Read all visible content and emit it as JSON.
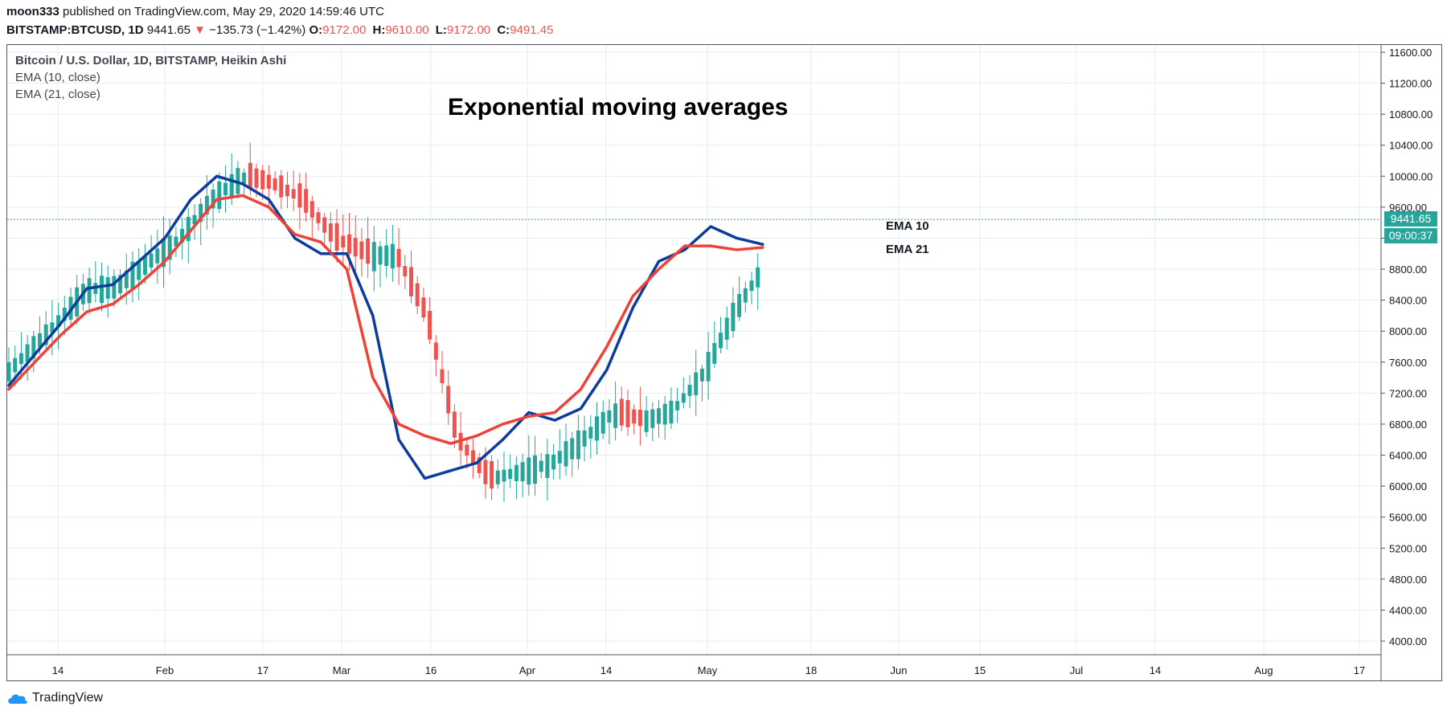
{
  "header": {
    "user": "moon333",
    "published": "published on TradingView.com, May 29, 2020 14:59:46 UTC",
    "symbol": "BITSTAMP:BTCUSD, 1D",
    "last": "9441.65",
    "change_arrow": "▼",
    "change": "−135.73 (−1.42%)",
    "o_label": "O:",
    "o_value": "9172.00",
    "h_label": "H:",
    "h_value": "9610.00",
    "l_label": "L:",
    "l_value": "9172.00",
    "c_label": "C:",
    "c_value": "9491.45"
  },
  "legend": {
    "main": "Bitcoin / U.S. Dollar, 1D, BITSTAMP, Heikin Ashi",
    "ema10": "EMA (10, close)",
    "ema21": "EMA (21, close)"
  },
  "price_tag": {
    "price": "9441.65",
    "countdown": "09:00:37"
  },
  "footer": {
    "brand": "TradingView"
  },
  "colors": {
    "up": "#26a69a",
    "down": "#ef5350",
    "ema10": "#0d3d9c",
    "ema21": "#ef4136",
    "grid": "#e6eef0"
  },
  "chart_data": {
    "type": "candlestick",
    "title": "Exponential moving averages",
    "ylim": [
      3900,
      11700
    ],
    "y_ticks": [
      "11600.00",
      "11200.00",
      "10800.00",
      "10400.00",
      "10000.00",
      "9600.00",
      "9200.00",
      "8800.00",
      "8400.00",
      "8000.00",
      "7600.00",
      "7200.00",
      "6800.00",
      "6400.00",
      "6000.00",
      "5600.00",
      "5200.00",
      "4800.00",
      "4400.00",
      "4000.00"
    ],
    "x_ticks": [
      "14",
      "Feb",
      "17",
      "Mar",
      "16",
      "Apr",
      "14",
      "May",
      "18",
      "Jun",
      "15",
      "Jul",
      "14",
      "Aug",
      "17"
    ],
    "current_price": 9441.65,
    "series": [
      {
        "name": "EMA 10",
        "color": "#0d3d9c",
        "values": [
          [
            0,
            7300
          ],
          [
            5,
            7700
          ],
          [
            10,
            8100
          ],
          [
            15,
            8550
          ],
          [
            20,
            8600
          ],
          [
            25,
            8900
          ],
          [
            30,
            9200
          ],
          [
            35,
            9700
          ],
          [
            40,
            10000
          ],
          [
            45,
            9900
          ],
          [
            50,
            9700
          ],
          [
            55,
            9200
          ],
          [
            60,
            9000
          ],
          [
            65,
            9000
          ],
          [
            70,
            8200
          ],
          [
            75,
            6600
          ],
          [
            80,
            6100
          ],
          [
            85,
            6200
          ],
          [
            90,
            6300
          ],
          [
            95,
            6600
          ],
          [
            100,
            6950
          ],
          [
            105,
            6850
          ],
          [
            110,
            7000
          ],
          [
            115,
            7500
          ],
          [
            120,
            8300
          ],
          [
            125,
            8900
          ],
          [
            130,
            9050
          ],
          [
            135,
            9350
          ],
          [
            140,
            9200
          ],
          [
            145,
            9120
          ]
        ]
      },
      {
        "name": "EMA 21",
        "color": "#ef4136",
        "values": [
          [
            0,
            7250
          ],
          [
            5,
            7600
          ],
          [
            10,
            7950
          ],
          [
            15,
            8250
          ],
          [
            20,
            8350
          ],
          [
            25,
            8600
          ],
          [
            30,
            8900
          ],
          [
            35,
            9300
          ],
          [
            40,
            9700
          ],
          [
            45,
            9750
          ],
          [
            50,
            9600
          ],
          [
            55,
            9250
          ],
          [
            60,
            9150
          ],
          [
            65,
            8800
          ],
          [
            70,
            7400
          ],
          [
            75,
            6800
          ],
          [
            80,
            6650
          ],
          [
            85,
            6550
          ],
          [
            90,
            6650
          ],
          [
            95,
            6800
          ],
          [
            100,
            6900
          ],
          [
            105,
            6950
          ],
          [
            110,
            7250
          ],
          [
            115,
            7800
          ],
          [
            120,
            8450
          ],
          [
            125,
            8800
          ],
          [
            130,
            9100
          ],
          [
            135,
            9100
          ],
          [
            140,
            9050
          ],
          [
            145,
            9080
          ]
        ]
      }
    ]
  }
}
